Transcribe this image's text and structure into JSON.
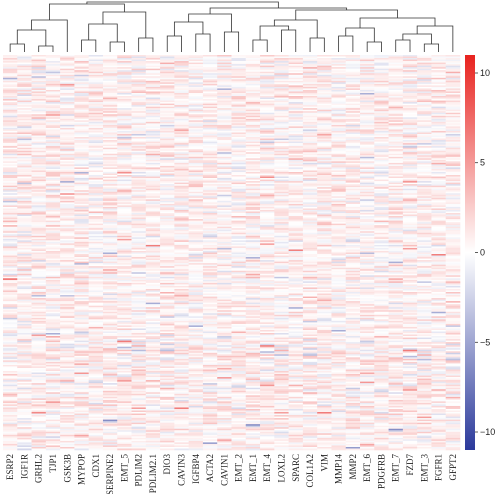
{
  "chart_data": {
    "type": "heatmap",
    "title": "",
    "xlabel": "",
    "ylabel": "",
    "columns": [
      "ESRP2",
      "IGF1R",
      "GRHL2",
      "TJP1",
      "GSK3B",
      "MYPOP",
      "CDX1",
      "SERPINE2",
      "EMT_5",
      "PDLIM2",
      "PDLIM2.1",
      "DIO3",
      "CAVIN3",
      "IGFBP4",
      "ACTA2",
      "CAVIN1",
      "EMT_2",
      "EMT_1",
      "EMT_4",
      "LOXL2",
      "SPARC",
      "COL1A2",
      "VIM",
      "MMP14",
      "MMP2",
      "EMT_6",
      "PDGFRB",
      "EMT_7",
      "FZD7",
      "EMT_3",
      "FGFR1",
      "GFPT2"
    ],
    "row_labels_shown": false,
    "dendrogram": "top",
    "colorbar": {
      "ticks": [
        10,
        5,
        0,
        -5,
        -10
      ],
      "range": [
        -11,
        11
      ],
      "colors": {
        "low": "#2b3a9b",
        "mid": "#ffffff",
        "high": "#e8231f"
      }
    }
  }
}
